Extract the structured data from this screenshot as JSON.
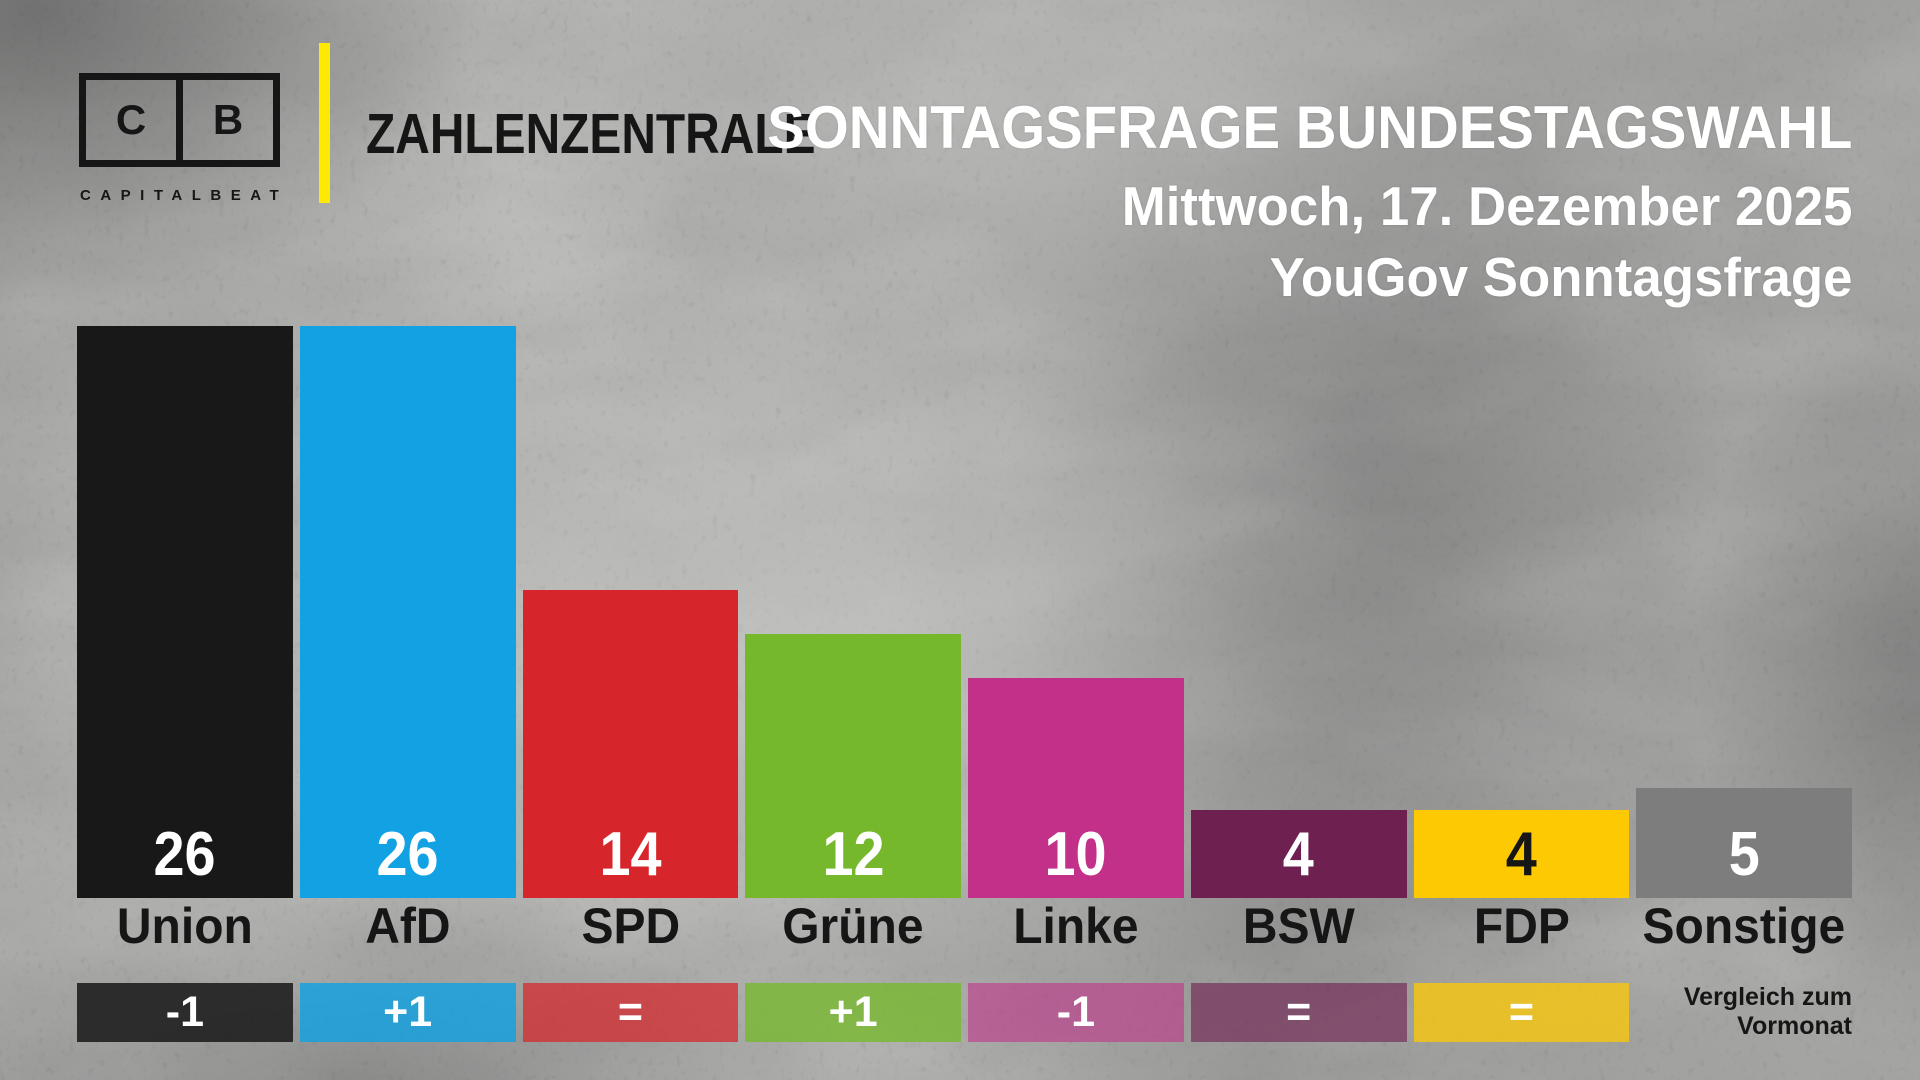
{
  "brand": {
    "logo_left_letter": "C",
    "logo_right_letter": "B",
    "logo_subtext": "CAPITALBEAT",
    "series_title": "ZAHLENZENTRALE",
    "accent_color": "#fde903"
  },
  "header": {
    "title": "SONNTAGSFRAGE BUNDESTAGSWAHL",
    "date_line": "Mittwoch, 17. Dezember 2025",
    "source_line": "YouGov Sonntagsfrage"
  },
  "footnote": {
    "line1": "Vergleich zum",
    "line2": "Vormonat"
  },
  "chart_data": {
    "type": "bar",
    "title": "Sonntagsfrage Bundestagswahl",
    "date": "Mittwoch, 17. Dezember 2025",
    "source": "YouGov Sonntagsfrage",
    "unit": "percent",
    "categories": [
      "Union",
      "AfD",
      "SPD",
      "Grüne",
      "Linke",
      "BSW",
      "FDP",
      "Sonstige"
    ],
    "values": [
      26,
      26,
      14,
      12,
      10,
      4,
      4,
      5
    ],
    "changes_vs_previous_month": [
      "-1",
      "+1",
      "=",
      "+1",
      "-1",
      "=",
      "=",
      null
    ],
    "bar_colors": [
      "#181818",
      "#12a1e2",
      "#d6262b",
      "#76b82b",
      "#c33089",
      "#6e2151",
      "#fdc903",
      "#7d7d7d"
    ],
    "change_badge_colors": [
      "rgba(24,24,24,0.85)",
      "rgba(18,161,226,0.82)",
      "rgba(214,38,43,0.73)",
      "rgba(118,184,43,0.78)",
      "rgba(195,48,137,0.58)",
      "rgba(110,33,81,0.62)",
      "rgba(253,201,3,0.75)",
      null
    ],
    "value_label_colors": [
      "#ffffff",
      "#ffffff",
      "#ffffff",
      "#ffffff",
      "#ffffff",
      "#ffffff",
      "#161616",
      "#ffffff"
    ],
    "annotation": "Vergleich zum Vormonat",
    "ylim": [
      0,
      30
    ],
    "grid": false,
    "legend": false
  }
}
